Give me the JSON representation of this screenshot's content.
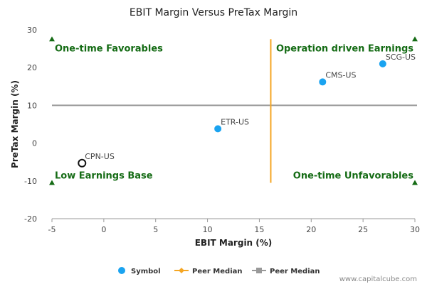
{
  "chart_data": {
    "type": "scatter",
    "title": "EBIT Margin Versus PreTax Margin",
    "xlabel": "EBIT Margin (%)",
    "ylabel": "PreTax Margin (%)",
    "xlim": [
      -5,
      30
    ],
    "ylim": [
      -20,
      30
    ],
    "xticks": [
      "-5",
      "0",
      "5",
      "10",
      "15",
      "20",
      "25",
      "30"
    ],
    "yticks": [
      "-20",
      "-10",
      "0",
      "10",
      "20",
      "30"
    ],
    "grid": false,
    "points": [
      {
        "label": "SCG-US",
        "x": 26.9,
        "y": 21.0,
        "style": "filled",
        "color": "#1aa3f0"
      },
      {
        "label": "CMS-US",
        "x": 21.1,
        "y": 16.2,
        "style": "filled",
        "color": "#1aa3f0"
      },
      {
        "label": "ETR-US",
        "x": 11.0,
        "y": 3.8,
        "style": "filled",
        "color": "#1aa3f0"
      },
      {
        "label": "CPN-US",
        "x": -2.1,
        "y": -5.3,
        "style": "hollow",
        "color": "#111111"
      }
    ],
    "peer_median_x": 16.1,
    "peer_median_y": 10.0,
    "peer_median_x_color": "#f5a623",
    "peer_median_y_color": "#999999",
    "quadrant_color": "#146b14",
    "quadrants": {
      "top_left": "One-time Favorables",
      "top_right": "Operation driven Earnings",
      "bottom_left": "Low Earnings Base",
      "bottom_right": "One-time Unfavorables"
    },
    "legend": {
      "position": "bottom-center",
      "items": [
        "Symbol",
        "Peer Median",
        "Peer Median"
      ]
    }
  },
  "credit": "www.capitalcube.com"
}
